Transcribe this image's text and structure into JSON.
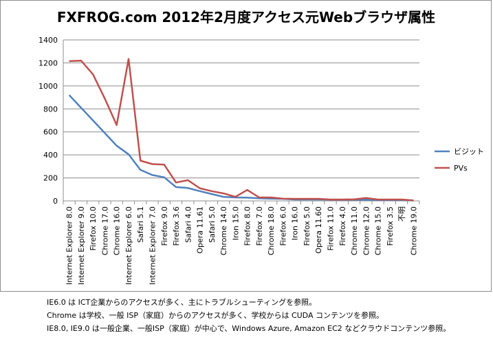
{
  "chart_data": {
    "type": "line",
    "title": "FXFROG.com 2012年2月度アクセス元Webブラウザ属性",
    "xlabel": "",
    "ylabel": "",
    "ylim": [
      0,
      1400
    ],
    "yticks": [
      0,
      200,
      400,
      600,
      800,
      1000,
      1200,
      1400
    ],
    "grid": "horizontal",
    "legend_position": "right",
    "categories": [
      "Internet Explorer 8.0",
      "Internet Explorer 9.0",
      "Firefox 10.0",
      "Chrome 17.0",
      "Chrome 16.0",
      "Internet Explorer 6.0",
      "Safari 5.1",
      "Internet Explorer 7.0",
      "Firefox 9.0",
      "Firefox 3.6",
      "Safari 4.0",
      "Opera 11.61",
      "Safari 5.0",
      "Chrome 14.0",
      "Iron 15.0",
      "Firefox 8.0",
      "Firefox 7.0",
      "Chrome 18.0",
      "Firefox 6.0",
      "Iron 16.0",
      "Firefox 5.0",
      "Opera 11.60",
      "Firefox 11.0",
      "Firefox 4.0",
      "Chrome 11.0",
      "Chrome 12.0",
      "Chrome 15.0",
      "Firefox 3.5",
      "不明",
      "Chrome 19.0"
    ],
    "series": [
      {
        "name": "ビジット",
        "color": "#4f81bd",
        "values": [
          920,
          810,
          700,
          590,
          480,
          405,
          270,
          225,
          205,
          120,
          112,
          85,
          60,
          35,
          30,
          28,
          22,
          20,
          18,
          12,
          12,
          12,
          10,
          10,
          10,
          10,
          8,
          8,
          8,
          3
        ]
      },
      {
        "name": "PVs",
        "color": "#c0504d",
        "values": [
          1215,
          1220,
          1100,
          890,
          660,
          1235,
          350,
          320,
          315,
          160,
          180,
          110,
          85,
          65,
          35,
          95,
          30,
          30,
          20,
          18,
          18,
          18,
          12,
          12,
          14,
          25,
          12,
          12,
          12,
          5
        ]
      }
    ]
  },
  "notes": [
    "IE6.0 は ICT企業からのアクセスが多く、主にトラブルシューティングを参照。",
    "Chrome は学校、一般 ISP（家庭）からのアクセスが多く、学校からは CUDA コンテンツを参照。",
    "IE8.0, IE9.0 は一般企業、一般ISP（家庭）が中心で、Windows Azure, Amazon EC2 などクラウドコンテンツ参照。"
  ]
}
